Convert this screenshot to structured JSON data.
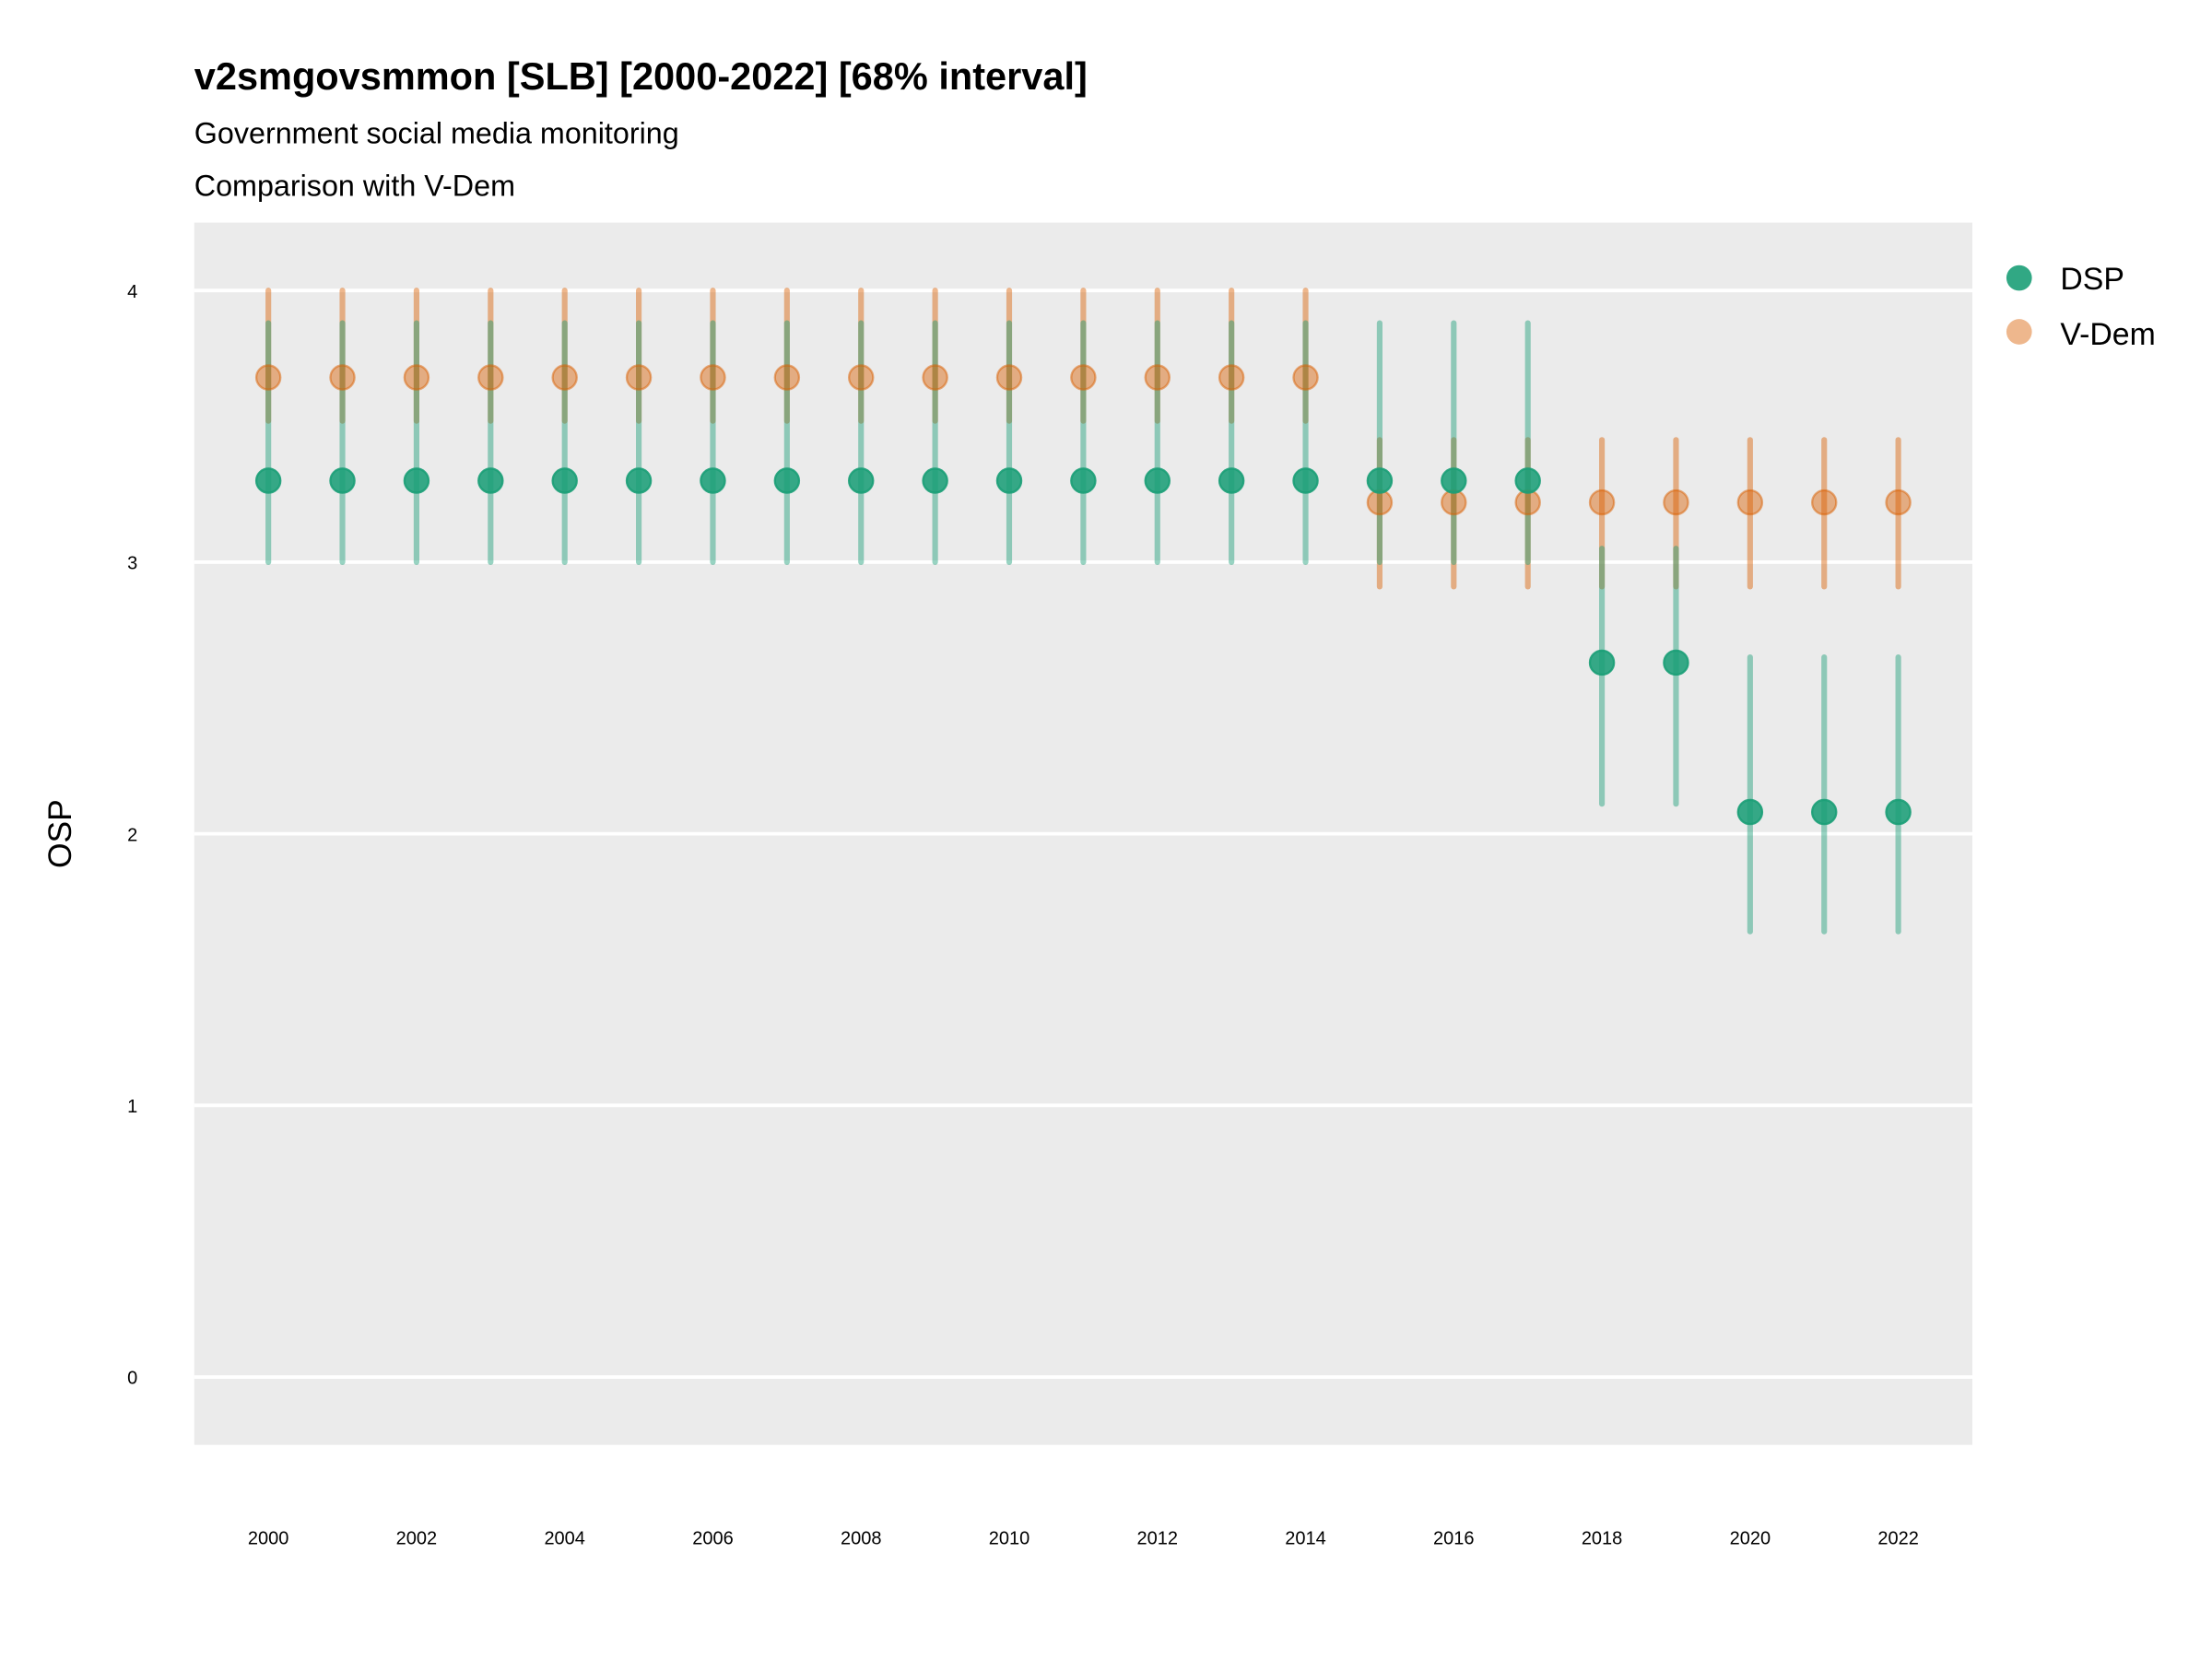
{
  "chart_data": {
    "type": "scatter",
    "title": "v2smgovsmmon [SLB] [2000-2022] [68% interval]",
    "subtitle": "Government social media monitoring",
    "subtitle2": "Comparison with V-Dem",
    "xlabel": "",
    "ylabel": "OSP",
    "xlim": [
      1999,
      2023
    ],
    "ylim": [
      -0.25,
      4.25
    ],
    "x_ticks": [
      2000,
      2002,
      2004,
      2006,
      2008,
      2010,
      2012,
      2014,
      2016,
      2018,
      2020,
      2022
    ],
    "x_tick_labels": [
      "2000",
      "2002",
      "2004",
      "2006",
      "2008",
      "2010",
      "2012",
      "2014",
      "2016",
      "2018",
      "2020",
      "2022"
    ],
    "y_ticks": [
      0,
      1,
      2,
      3,
      4
    ],
    "y_tick_labels": [
      "0",
      "1",
      "2",
      "3",
      "4"
    ],
    "grid": true,
    "legend_position": "right",
    "x": [
      2000,
      2001,
      2002,
      2003,
      2004,
      2005,
      2006,
      2007,
      2008,
      2009,
      2010,
      2011,
      2012,
      2013,
      2014,
      2015,
      2016,
      2017,
      2018,
      2019,
      2020,
      2021,
      2022
    ],
    "series": [
      {
        "name": "DSP",
        "color": "#1b9e77",
        "values": [
          3.3,
          3.3,
          3.3,
          3.3,
          3.3,
          3.3,
          3.3,
          3.3,
          3.3,
          3.3,
          3.3,
          3.3,
          3.3,
          3.3,
          3.3,
          3.3,
          3.3,
          3.3,
          2.63,
          2.63,
          2.08,
          2.08,
          2.08
        ],
        "lower": [
          3.0,
          3.0,
          3.0,
          3.0,
          3.0,
          3.0,
          3.0,
          3.0,
          3.0,
          3.0,
          3.0,
          3.0,
          3.0,
          3.0,
          3.0,
          3.0,
          3.0,
          3.0,
          2.11,
          2.11,
          1.64,
          1.64,
          1.64
        ],
        "upper": [
          3.88,
          3.88,
          3.88,
          3.88,
          3.88,
          3.88,
          3.88,
          3.88,
          3.88,
          3.88,
          3.88,
          3.88,
          3.88,
          3.88,
          3.88,
          3.88,
          3.88,
          3.88,
          3.05,
          3.05,
          2.65,
          2.65,
          2.65
        ]
      },
      {
        "name": "V-Dem",
        "color": "#d95f02",
        "values": [
          3.68,
          3.68,
          3.68,
          3.68,
          3.68,
          3.68,
          3.68,
          3.68,
          3.68,
          3.68,
          3.68,
          3.68,
          3.68,
          3.68,
          3.68,
          3.22,
          3.22,
          3.22,
          3.22,
          3.22,
          3.22,
          3.22,
          3.22
        ],
        "lower": [
          3.52,
          3.52,
          3.52,
          3.52,
          3.52,
          3.52,
          3.52,
          3.52,
          3.52,
          3.52,
          3.52,
          3.52,
          3.52,
          3.52,
          3.52,
          2.91,
          2.91,
          2.91,
          2.91,
          2.91,
          2.91,
          2.91,
          2.91
        ],
        "upper": [
          4.0,
          4.0,
          4.0,
          4.0,
          4.0,
          4.0,
          4.0,
          4.0,
          4.0,
          4.0,
          4.0,
          4.0,
          4.0,
          4.0,
          4.0,
          3.45,
          3.45,
          3.45,
          3.45,
          3.45,
          3.45,
          3.45,
          3.45
        ]
      }
    ]
  }
}
